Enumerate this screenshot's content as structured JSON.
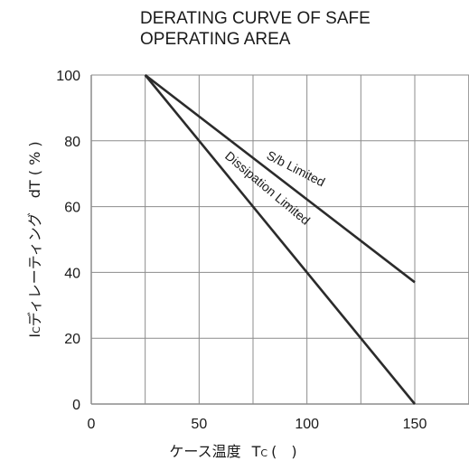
{
  "chart_data": {
    "type": "line",
    "title": "DERATING CURVE OF SAFE OPERATING AREA",
    "title_lines": [
      "DERATING CURVE OF SAFE",
      "OPERATING AREA"
    ],
    "xlabel": "ケース温度　Tc (　)",
    "xlabel_main": "ケース温度",
    "xlabel_symbol": "T",
    "xlabel_sub": "C",
    "xlabel_unit": "(　)",
    "ylabel": "Icディレーティング　dT ( % )",
    "ylabel_main": "I",
    "ylabel_sub": "C",
    "ylabel_rest": "ディレーティング　dT ( % )",
    "xlim": [
      0,
      175
    ],
    "ylim": [
      0,
      100
    ],
    "x_ticks": [
      0,
      50,
      100,
      150
    ],
    "y_ticks": [
      0,
      20,
      40,
      60,
      80,
      100
    ],
    "grid": true,
    "line_color": "#2b2b2b",
    "series": [
      {
        "name": "S/b Limited",
        "x": [
          25,
          150
        ],
        "y": [
          100,
          37
        ]
      },
      {
        "name": "Dissipation Limited",
        "x": [
          25,
          150
        ],
        "y": [
          100,
          0
        ]
      }
    ]
  }
}
